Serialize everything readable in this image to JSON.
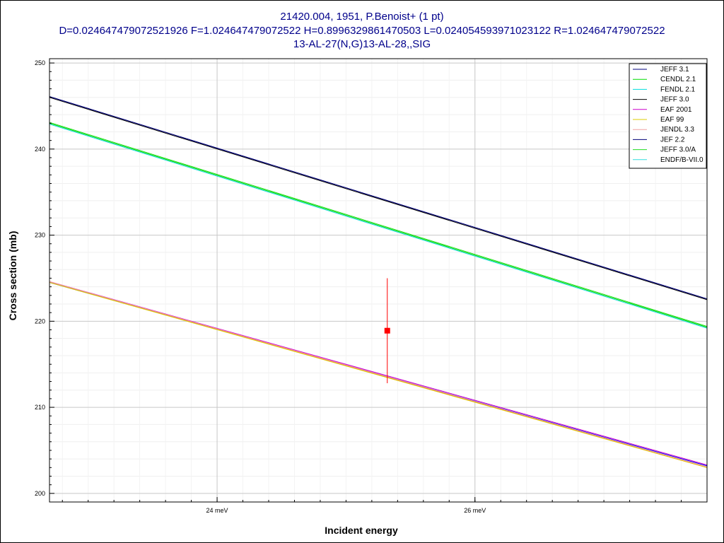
{
  "chart_data": {
    "type": "line",
    "title": "21420.004, 1951, P.Benoist+ (1 pt)",
    "subtitle": "D=0.024647479072521926 F=1.024647479072522 H=0.8996329861470503 L=0.024054593971023122 R=1.024647479072522",
    "reaction": "13-AL-27(N,G)13-AL-28,,SIG",
    "xlabel": "Incident energy",
    "ylabel": "Cross section (mb)",
    "xlim": [
      22.7,
      27.8
    ],
    "ylim": [
      199.0,
      250.5
    ],
    "x_ticks": [
      {
        "value": 24,
        "label": "24 meV"
      },
      {
        "value": 26,
        "label": "26 meV"
      }
    ],
    "y_ticks": [
      200,
      210,
      220,
      230,
      240,
      250
    ],
    "grid": true,
    "legend_position": "top-right",
    "series": [
      {
        "name": "JEFF 3.1",
        "color": "#00007f",
        "x": [
          22.7,
          27.8
        ],
        "y": [
          246.1,
          222.6
        ]
      },
      {
        "name": "CENDL 2.1",
        "color": "#00dd00",
        "x": [
          22.7,
          27.8
        ],
        "y": [
          243.0,
          219.3
        ]
      },
      {
        "name": "FENDL 2.1",
        "color": "#00dddd",
        "x": [
          22.7,
          27.8
        ],
        "y": [
          242.9,
          219.2
        ]
      },
      {
        "name": "JEFF 3.0",
        "color": "#000000",
        "x": [
          22.7,
          27.8
        ],
        "y": [
          246.0,
          222.5
        ]
      },
      {
        "name": "EAF 2001",
        "color": "#cc00cc",
        "x": [
          22.7,
          27.8
        ],
        "y": [
          224.6,
          203.3
        ]
      },
      {
        "name": "EAF 99",
        "color": "#ddcc00",
        "x": [
          22.7,
          27.8
        ],
        "y": [
          224.5,
          203.0
        ]
      },
      {
        "name": "JENDL 3.3",
        "color": "#f0a0a0",
        "x": [
          22.7,
          27.8
        ],
        "y": [
          224.6,
          203.1
        ]
      },
      {
        "name": "JEF 2.2",
        "color": "#000077",
        "x": [
          22.7,
          27.8
        ],
        "y": [
          246.1,
          222.6
        ]
      },
      {
        "name": "JEFF 3.0/A",
        "color": "#22dd22",
        "x": [
          22.7,
          27.8
        ],
        "y": [
          243.1,
          219.4
        ]
      },
      {
        "name": "ENDF/B-VII.0",
        "color": "#33dddd",
        "x": [
          22.7,
          27.8
        ],
        "y": [
          242.9,
          219.2
        ]
      }
    ],
    "extra_curves": [
      {
        "color": "#0000ff",
        "x": [
          22.7,
          27.8
        ],
        "y": [
          224.5,
          203.2
        ]
      },
      {
        "color": "#ff2020",
        "x": [
          22.7,
          27.8
        ],
        "y": [
          224.6,
          203.0
        ]
      }
    ],
    "measurements": [
      {
        "x": 25.32,
        "y": 218.9,
        "yerr": 6.1,
        "color": "#ff0000"
      }
    ]
  }
}
